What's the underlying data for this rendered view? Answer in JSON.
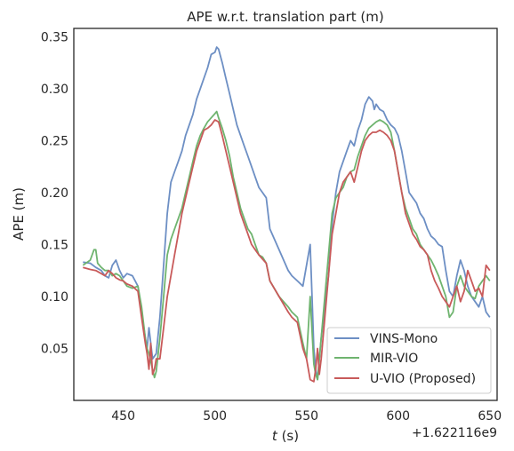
{
  "chart_data": {
    "type": "line",
    "title": "APE w.r.t. translation part (m)",
    "xlabel_italic": "t",
    "xlabel_unit": " (s)",
    "ylabel": "APE (m)",
    "x_offset_label": "+1.622116e9",
    "xlim": [
      423,
      654
    ],
    "ylim": [
      0.0,
      0.358
    ],
    "xticks": [
      450,
      500,
      550,
      600,
      650
    ],
    "yticks": [
      0.05,
      0.1,
      0.15,
      0.2,
      0.25,
      0.3,
      0.35
    ],
    "ytick_labels": [
      "0.05",
      "0.10",
      "0.15",
      "0.20",
      "0.25",
      "0.30",
      "0.35"
    ],
    "grid": false,
    "legend_position": "lower right",
    "series": [
      {
        "name": "VINS-Mono",
        "color": "#6d8fc4",
        "x": [
          428,
          432,
          435,
          438,
          440,
          442,
          444,
          446,
          448,
          450,
          452,
          455,
          458,
          460,
          462,
          463,
          464,
          466,
          468,
          470,
          472,
          474,
          476,
          478,
          480,
          482,
          484,
          486,
          488,
          490,
          492,
          494,
          496,
          498,
          500,
          501,
          502,
          504,
          506,
          508,
          510,
          512,
          514,
          516,
          518,
          520,
          522,
          524,
          526,
          528,
          530,
          535,
          540,
          542,
          545,
          548,
          550,
          552,
          553,
          554,
          555,
          556,
          557,
          558,
          560,
          562,
          564,
          566,
          568,
          570,
          572,
          574,
          576,
          578,
          580,
          582,
          584,
          586,
          587,
          588,
          590,
          592,
          594,
          596,
          598,
          600,
          602,
          604,
          606,
          608,
          610,
          612,
          614,
          616,
          618,
          620,
          622,
          624,
          626,
          628,
          630,
          632,
          634,
          636,
          638,
          640,
          642,
          644,
          646,
          648,
          650
        ],
        "y": [
          0.133,
          0.132,
          0.128,
          0.125,
          0.12,
          0.118,
          0.13,
          0.135,
          0.125,
          0.118,
          0.122,
          0.12,
          0.11,
          0.085,
          0.06,
          0.05,
          0.07,
          0.04,
          0.045,
          0.08,
          0.13,
          0.18,
          0.21,
          0.22,
          0.23,
          0.24,
          0.255,
          0.265,
          0.275,
          0.29,
          0.3,
          0.31,
          0.32,
          0.333,
          0.335,
          0.34,
          0.338,
          0.325,
          0.31,
          0.295,
          0.28,
          0.265,
          0.255,
          0.245,
          0.235,
          0.225,
          0.215,
          0.205,
          0.2,
          0.195,
          0.165,
          0.145,
          0.125,
          0.12,
          0.115,
          0.11,
          0.13,
          0.15,
          0.1,
          0.05,
          0.03,
          0.02,
          0.04,
          0.06,
          0.09,
          0.12,
          0.17,
          0.2,
          0.22,
          0.23,
          0.24,
          0.25,
          0.245,
          0.26,
          0.27,
          0.285,
          0.292,
          0.288,
          0.28,
          0.285,
          0.28,
          0.278,
          0.27,
          0.265,
          0.262,
          0.255,
          0.24,
          0.22,
          0.2,
          0.195,
          0.19,
          0.18,
          0.175,
          0.165,
          0.158,
          0.155,
          0.15,
          0.148,
          0.125,
          0.105,
          0.1,
          0.12,
          0.135,
          0.125,
          0.11,
          0.1,
          0.095,
          0.09,
          0.1,
          0.085,
          0.08
        ]
      },
      {
        "name": "MIR-VIO",
        "color": "#6fb46f",
        "x": [
          428,
          432,
          434,
          435,
          436,
          438,
          440,
          442,
          444,
          446,
          448,
          450,
          452,
          455,
          458,
          460,
          462,
          463,
          464,
          466,
          467,
          468,
          470,
          472,
          474,
          476,
          478,
          480,
          482,
          484,
          486,
          488,
          490,
          492,
          494,
          496,
          498,
          500,
          501,
          502,
          504,
          506,
          508,
          510,
          512,
          514,
          516,
          518,
          520,
          522,
          524,
          526,
          528,
          530,
          535,
          540,
          542,
          545,
          548,
          550,
          552,
          554,
          555,
          556,
          557,
          558,
          560,
          562,
          564,
          566,
          568,
          570,
          572,
          574,
          576,
          578,
          580,
          582,
          584,
          586,
          588,
          590,
          592,
          594,
          596,
          598,
          600,
          602,
          604,
          606,
          608,
          610,
          612,
          614,
          616,
          618,
          620,
          622,
          624,
          626,
          628,
          630,
          632,
          634,
          636,
          638,
          640,
          642,
          644,
          646,
          648,
          650
        ],
        "y": [
          0.13,
          0.135,
          0.145,
          0.145,
          0.132,
          0.128,
          0.125,
          0.125,
          0.12,
          0.122,
          0.12,
          0.115,
          0.11,
          0.108,
          0.11,
          0.09,
          0.06,
          0.05,
          0.045,
          0.03,
          0.022,
          0.028,
          0.06,
          0.1,
          0.14,
          0.155,
          0.165,
          0.175,
          0.185,
          0.2,
          0.215,
          0.23,
          0.245,
          0.255,
          0.262,
          0.268,
          0.272,
          0.276,
          0.278,
          0.272,
          0.262,
          0.25,
          0.235,
          0.215,
          0.2,
          0.185,
          0.175,
          0.165,
          0.16,
          0.15,
          0.14,
          0.138,
          0.132,
          0.115,
          0.1,
          0.09,
          0.085,
          0.08,
          0.055,
          0.04,
          0.1,
          0.035,
          0.025,
          0.02,
          0.04,
          0.06,
          0.1,
          0.14,
          0.18,
          0.195,
          0.2,
          0.205,
          0.215,
          0.22,
          0.222,
          0.235,
          0.245,
          0.255,
          0.262,
          0.265,
          0.268,
          0.27,
          0.268,
          0.265,
          0.258,
          0.24,
          0.22,
          0.2,
          0.185,
          0.175,
          0.165,
          0.16,
          0.15,
          0.145,
          0.14,
          0.135,
          0.128,
          0.12,
          0.11,
          0.1,
          0.08,
          0.085,
          0.11,
          0.12,
          0.11,
          0.105,
          0.1,
          0.098,
          0.11,
          0.115,
          0.12,
          0.115
        ]
      },
      {
        "name": "U-VIO (Proposed)",
        "color": "#c85a5a",
        "x": [
          428,
          432,
          435,
          438,
          440,
          442,
          444,
          446,
          448,
          450,
          452,
          455,
          458,
          460,
          462,
          463,
          464,
          465,
          466,
          467,
          468,
          470,
          472,
          474,
          476,
          478,
          480,
          482,
          484,
          486,
          488,
          490,
          492,
          494,
          496,
          498,
          500,
          502,
          504,
          506,
          508,
          510,
          512,
          514,
          516,
          518,
          520,
          522,
          524,
          526,
          528,
          530,
          535,
          540,
          542,
          545,
          548,
          550,
          552,
          554,
          555,
          556,
          557,
          558,
          560,
          562,
          564,
          566,
          568,
          570,
          572,
          574,
          576,
          578,
          580,
          582,
          584,
          586,
          588,
          590,
          592,
          594,
          596,
          598,
          600,
          602,
          604,
          606,
          608,
          610,
          612,
          614,
          616,
          618,
          620,
          622,
          624,
          626,
          628,
          630,
          632,
          634,
          636,
          638,
          640,
          642,
          644,
          646,
          648,
          650
        ],
        "y": [
          0.128,
          0.126,
          0.125,
          0.122,
          0.12,
          0.125,
          0.122,
          0.118,
          0.116,
          0.115,
          0.112,
          0.11,
          0.105,
          0.08,
          0.055,
          0.045,
          0.03,
          0.055,
          0.025,
          0.03,
          0.04,
          0.04,
          0.07,
          0.1,
          0.12,
          0.14,
          0.16,
          0.18,
          0.195,
          0.21,
          0.225,
          0.24,
          0.25,
          0.26,
          0.262,
          0.265,
          0.27,
          0.268,
          0.255,
          0.24,
          0.225,
          0.21,
          0.195,
          0.18,
          0.17,
          0.16,
          0.15,
          0.145,
          0.14,
          0.136,
          0.132,
          0.115,
          0.1,
          0.085,
          0.08,
          0.075,
          0.05,
          0.04,
          0.02,
          0.018,
          0.03,
          0.05,
          0.025,
          0.04,
          0.08,
          0.12,
          0.16,
          0.18,
          0.2,
          0.21,
          0.215,
          0.22,
          0.21,
          0.225,
          0.24,
          0.25,
          0.255,
          0.258,
          0.258,
          0.26,
          0.258,
          0.255,
          0.25,
          0.24,
          0.22,
          0.2,
          0.18,
          0.17,
          0.16,
          0.155,
          0.148,
          0.145,
          0.14,
          0.125,
          0.115,
          0.108,
          0.1,
          0.095,
          0.09,
          0.1,
          0.11,
          0.095,
          0.105,
          0.125,
          0.115,
          0.105,
          0.108,
          0.1,
          0.13,
          0.125
        ]
      }
    ]
  }
}
